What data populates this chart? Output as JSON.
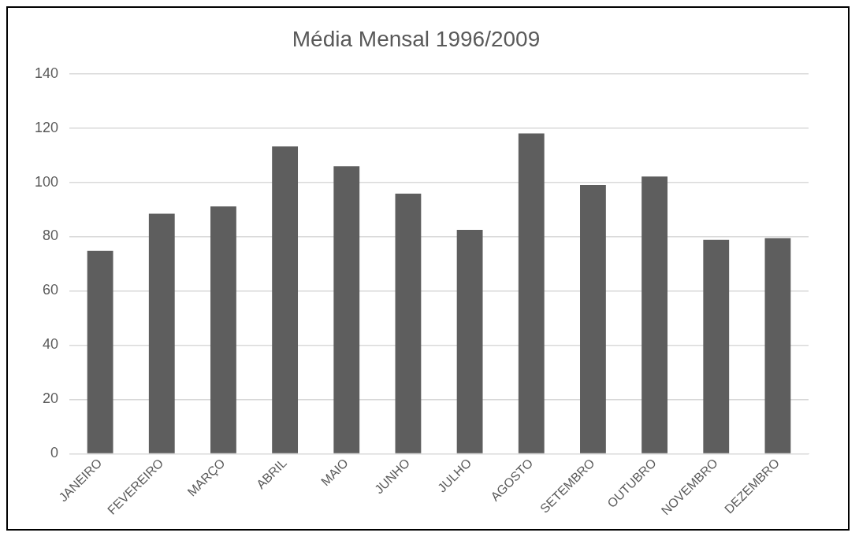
{
  "chart_data": {
    "type": "bar",
    "title": "Média Mensal 1996/2009",
    "categories": [
      "JANEIRO",
      "FEVEREIRO",
      "MARÇO",
      "ABRIL",
      "MAIO",
      "JUNHO",
      "JULHO",
      "AGOSTO",
      "SETEMBRO",
      "OUTUBRO",
      "NOVEMBRO",
      "DEZEMBRO"
    ],
    "values": [
      74.7,
      88.4,
      91.1,
      113.2,
      105.9,
      95.8,
      82.5,
      118,
      99,
      102.1,
      78.8,
      79.4
    ],
    "color": "#5e5e5e",
    "ylim": [
      0,
      140
    ],
    "yticks": [
      0,
      20,
      40,
      60,
      80,
      100,
      120,
      140
    ],
    "grid": "y",
    "legend": false
  }
}
